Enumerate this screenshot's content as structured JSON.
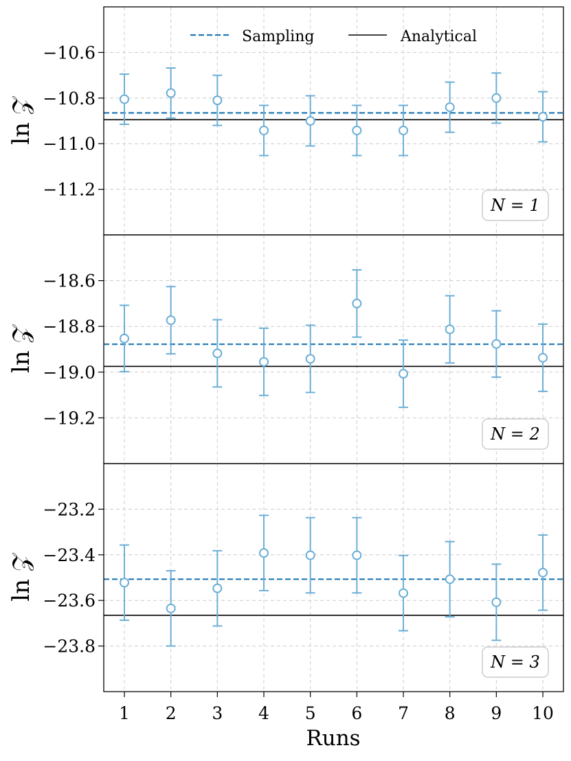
{
  "chart_data": [
    {
      "type": "scatter",
      "panel": 1,
      "ylabel": "ln 𝒵",
      "xlabel": "",
      "annotation": "N = 1",
      "legend_position": "top-center",
      "grid": true,
      "x": [
        1,
        2,
        3,
        4,
        5,
        6,
        7,
        8,
        9,
        10
      ],
      "ylim": [
        -11.4,
        -10.4
      ],
      "yticks": [
        -10.6,
        -10.8,
        -11.0,
        -11.2
      ],
      "ytick_labels": [
        "−10.6",
        "−10.8",
        "−11.0",
        "−11.2"
      ],
      "series": [
        {
          "name": "Sampling",
          "style": "dashed",
          "color": "#1f77b4",
          "value": -10.865
        },
        {
          "name": "Analytical",
          "style": "solid",
          "color": "#000000",
          "value": -10.895
        },
        {
          "kind": "errorbar",
          "color": "#6baed6",
          "values": [
            -10.805,
            -10.778,
            -10.81,
            -10.942,
            -10.9,
            -10.942,
            -10.942,
            -10.84,
            -10.8,
            -10.882
          ],
          "errors": [
            0.11,
            0.11,
            0.11,
            0.11,
            0.11,
            0.11,
            0.11,
            0.11,
            0.11,
            0.11
          ]
        }
      ]
    },
    {
      "type": "scatter",
      "panel": 2,
      "ylabel": "ln 𝒵",
      "xlabel": "",
      "annotation": "N = 2",
      "grid": true,
      "x": [
        1,
        2,
        3,
        4,
        5,
        6,
        7,
        8,
        9,
        10
      ],
      "ylim": [
        -19.4,
        -18.4
      ],
      "yticks": [
        -18.6,
        -18.8,
        -19.0,
        -19.2
      ],
      "ytick_labels": [
        "−18.6",
        "−18.8",
        "−19.0",
        "−19.2"
      ],
      "series": [
        {
          "name": "Sampling",
          "style": "dashed",
          "color": "#1f77b4",
          "value": -18.878
        },
        {
          "name": "Analytical",
          "style": "solid",
          "color": "#000000",
          "value": -18.975
        },
        {
          "kind": "errorbar",
          "color": "#6baed6",
          "values": [
            -18.853,
            -18.773,
            -18.918,
            -18.955,
            -18.942,
            -18.7,
            -19.007,
            -18.813,
            -18.877,
            -18.937
          ],
          "errors": [
            0.145,
            0.147,
            0.147,
            0.147,
            0.147,
            0.147,
            0.147,
            0.147,
            0.145,
            0.147
          ]
        }
      ]
    },
    {
      "type": "scatter",
      "panel": 3,
      "ylabel": "ln 𝒵",
      "xlabel": "Runs",
      "annotation": "N = 3",
      "grid": true,
      "x": [
        1,
        2,
        3,
        4,
        5,
        6,
        7,
        8,
        9,
        10
      ],
      "xtick_labels": [
        "1",
        "2",
        "3",
        "4",
        "5",
        "6",
        "7",
        "8",
        "9",
        "10"
      ],
      "ylim": [
        -24.0,
        -23.0
      ],
      "yticks": [
        -23.2,
        -23.4,
        -23.6,
        -23.8
      ],
      "ytick_labels": [
        "−23.2",
        "−23.4",
        "−23.6",
        "−23.8"
      ],
      "series": [
        {
          "name": "Sampling",
          "style": "dashed",
          "color": "#1f77b4",
          "value": -23.507
        },
        {
          "name": "Analytical",
          "style": "solid",
          "color": "#000000",
          "value": -23.665
        },
        {
          "kind": "errorbar",
          "color": "#6baed6",
          "values": [
            -23.522,
            -23.635,
            -23.547,
            -23.392,
            -23.402,
            -23.402,
            -23.568,
            -23.507,
            -23.608,
            -23.478
          ],
          "errors": [
            0.165,
            0.165,
            0.165,
            0.165,
            0.165,
            0.165,
            0.165,
            0.165,
            0.167,
            0.165
          ]
        }
      ]
    }
  ]
}
